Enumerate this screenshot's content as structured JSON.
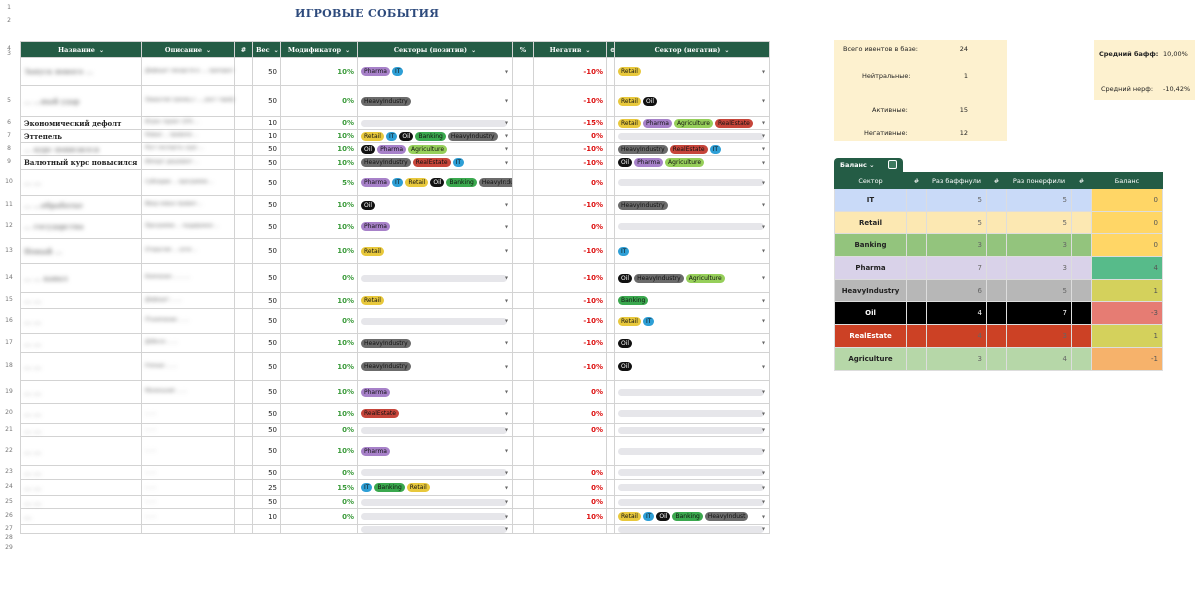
{
  "title": "ИГРОВЫЕ СОБЫТИЯ",
  "headers": {
    "name": "Название",
    "description": "Описание",
    "hash": "#",
    "weight": "Вес",
    "modifier": "Модификатор",
    "sectors_pos": "Секторы (позитив)",
    "percent": "%",
    "negative": "Негатив",
    "link": "⊖",
    "sectors_neg": "Сектор (негатив)"
  },
  "row_numbers": [
    "1",
    "2",
    "3",
    "4",
    "5",
    "6",
    "7",
    "8",
    "9",
    "10",
    "11",
    "12",
    "13",
    "14",
    "15",
    "16",
    "17",
    "18",
    "19",
    "20",
    "21",
    "22",
    "23",
    "24",
    "25",
    "26",
    "27",
    "28",
    "29"
  ],
  "sector_colors": {
    "Pharma": "#a781c9",
    "IT": "#2e9fd6",
    "Retail": "#e8c83c",
    "HeavyIndustry": "#6b6b6b",
    "Banking": "#3aa84e",
    "RealEstate": "#c6453a",
    "Agriculture": "#96cf5a",
    "Oil": "#111111"
  },
  "rows": [
    {
      "name": "Запуск нового ...",
      "desc": "Дефицит лекарств в ..., препараты по ... ",
      "weight": "50",
      "mod": "10%",
      "pos": [
        "Pharma",
        "IT"
      ],
      "neg": "-10%",
      "negs": [
        "Retail"
      ]
    },
    {
      "name": "... ...ный удар",
      "desc": "Закрытие границ с ..., рост тарифов ...",
      "weight": "50",
      "mod": "0%",
      "pos": [
        "HeavyIndustry"
      ],
      "neg": "-10%",
      "negs": [
        "Retail",
        "Oil"
      ]
    },
    {
      "name": "Экономический дефолт",
      "desc": "Игрок теряет 10% ...",
      "weight": "10",
      "mod": "0%",
      "pos": [],
      "neg": "-15%",
      "negs": [
        "Retail",
        "Pharma",
        "Agriculture",
        "RealEstate"
      ]
    },
    {
      "name": "Эттепель",
      "desc": "Новые ... правила ...",
      "weight": "10",
      "mod": "10%",
      "pos": [
        "Retail",
        "IT",
        "Oil",
        "Banking",
        "HeavyIndustry"
      ],
      "neg": "0%",
      "negs": []
    },
    {
      "name": "... курс понизился",
      "desc": "Рост экспорта, курс ...",
      "weight": "50",
      "mod": "10%",
      "pos": [
        "Oil",
        "Pharma",
        "Agriculture"
      ],
      "neg": "-10%",
      "negs": [
        "HeavyIndustry",
        "RealEstate",
        "IT"
      ]
    },
    {
      "name": "Валютный курс повысился",
      "desc": "Импорт дешевеет ...",
      "weight": "50",
      "mod": "10%",
      "pos": [
        "HeavyIndustry",
        "RealEstate",
        "IT"
      ],
      "neg": "-10%",
      "negs": [
        "Oil",
        "Pharma",
        "Agriculture"
      ]
    },
    {
      "name": "... ...",
      "desc": "Субсидии ... программа ...",
      "weight": "50",
      "mod": "5%",
      "pos": [
        "Pharma",
        "IT",
        "Retail",
        "Oil",
        "Banking",
        "HeavyIndustry"
      ],
      "neg": "0%",
      "negs": []
    },
    {
      "name": "... ...обработке",
      "desc": "Ввод новых правил ...",
      "weight": "50",
      "mod": "10%",
      "pos": [
        "Oil"
      ],
      "neg": "-10%",
      "negs": [
        "HeavyIndustry"
      ]
    },
    {
      "name": "... государства",
      "desc": "Программа ... поддержки ...",
      "weight": "50",
      "mod": "10%",
      "pos": [
        "Pharma"
      ],
      "neg": "0%",
      "negs": []
    },
    {
      "name": "Новый ...",
      "desc": "Открытие ... сети ...",
      "weight": "50",
      "mod": "10%",
      "pos": [
        "Retail"
      ],
      "neg": "-10%",
      "negs": [
        "IT"
      ]
    },
    {
      "name": "... ... канал",
      "desc": "Компания ... ... ...",
      "weight": "50",
      "mod": "0%",
      "pos": [],
      "neg": "-10%",
      "negs": [
        "Oil",
        "HeavyIndustry",
        "Agriculture"
      ]
    },
    {
      "name": "... ...",
      "desc": "Дефицит ... ...",
      "weight": "50",
      "mod": "10%",
      "pos": [
        "Retail"
      ],
      "neg": "-10%",
      "negs": [
        "Banking"
      ]
    },
    {
      "name": "... ...",
      "desc": "IT-компании ... ...",
      "weight": "50",
      "mod": "0%",
      "pos": [],
      "neg": "-10%",
      "negs": [
        "Retail",
        "IT"
      ]
    },
    {
      "name": "... ...",
      "desc": "Добыча ... ...",
      "weight": "50",
      "mod": "10%",
      "pos": [
        "HeavyIndustry"
      ],
      "neg": "-10%",
      "negs": [
        "Oil"
      ]
    },
    {
      "name": "... ...",
      "desc": "Ученые ... ...",
      "weight": "50",
      "mod": "10%",
      "pos": [
        "HeavyIndustry"
      ],
      "neg": "-10%",
      "negs": [
        "Oil"
      ]
    },
    {
      "name": "... ...",
      "desc": "Маленький ... ...",
      "weight": "50",
      "mod": "10%",
      "pos": [
        "Pharma"
      ],
      "neg": "0%",
      "negs": []
    },
    {
      "name": "... ...",
      "desc": "... ...",
      "weight": "50",
      "mod": "10%",
      "pos": [
        "RealEstate"
      ],
      "neg": "0%",
      "negs": []
    },
    {
      "name": "... ...",
      "desc": "... ...",
      "weight": "50",
      "mod": "0%",
      "pos": [],
      "neg": "0%",
      "negs": []
    },
    {
      "name": "... ...",
      "desc": "... ...",
      "weight": "50",
      "mod": "10%",
      "pos": [
        "Pharma"
      ],
      "neg": "",
      "negs": []
    },
    {
      "name": "... ...",
      "desc": "... ...",
      "weight": "50",
      "mod": "0%",
      "pos": [],
      "neg": "0%",
      "negs": []
    },
    {
      "name": "... ...",
      "desc": "... ...",
      "weight": "25",
      "mod": "15%",
      "pos": [
        "IT",
        "Banking",
        "Retail"
      ],
      "neg": "0%",
      "negs": []
    },
    {
      "name": "... ...",
      "desc": "... ...",
      "weight": "50",
      "mod": "0%",
      "pos": [],
      "neg": "0%",
      "negs": []
    },
    {
      "name": "...",
      "desc": "... ...",
      "weight": "10",
      "mod": "0%",
      "pos": [],
      "neg": "10%",
      "negs": [
        "Retail",
        "IT",
        "Oil",
        "Banking",
        "HeavyIndust"
      ]
    },
    {
      "name": "",
      "desc": "",
      "weight": "",
      "mod": "",
      "pos": [],
      "neg": "",
      "negs": []
    }
  ],
  "stats": {
    "total_label": "Всего ивентов в базе:",
    "total": "24",
    "neutral_label": "Нейтральные:",
    "neutral": "1",
    "active_label": "Активные:",
    "active": "15",
    "negative_label": "Негативные:",
    "negative": "12"
  },
  "avg": {
    "buff_label": "Средний бафф:",
    "buff": "10,00%",
    "nerf_label": "Средний нерф:",
    "nerf": "-10,42%"
  },
  "balance": {
    "tab": "Баланс",
    "headers": [
      "Сектор",
      "#",
      "Раз баффнули",
      "#",
      "Раз понерфили",
      "#",
      "Баланс"
    ],
    "rows": [
      {
        "sector": "IT",
        "buffed": "5",
        "nerfed": "5",
        "bal": "0",
        "color": "#c9daf8",
        "balcolor": "#ffd666"
      },
      {
        "sector": "Retail",
        "buffed": "5",
        "nerfed": "5",
        "bal": "0",
        "color": "#fce8b2",
        "balcolor": "#ffd666"
      },
      {
        "sector": "Banking",
        "buffed": "3",
        "nerfed": "3",
        "bal": "0",
        "color": "#93c47d",
        "balcolor": "#ffd666"
      },
      {
        "sector": "Pharma",
        "buffed": "7",
        "nerfed": "3",
        "bal": "4",
        "color": "#d9d2e9",
        "balcolor": "#57bb8a"
      },
      {
        "sector": "HeavyIndustry",
        "buffed": "6",
        "nerfed": "5",
        "bal": "1",
        "color": "#b7b7b7",
        "balcolor": "#d4d15c"
      },
      {
        "sector": "Oil",
        "buffed": "4",
        "nerfed": "7",
        "bal": "-3",
        "color": "#000000",
        "balcolor": "#e67c73"
      },
      {
        "sector": "RealEstate",
        "buffed": "4",
        "nerfed": "3",
        "bal": "1",
        "color": "#cc4125",
        "balcolor": "#d4d15c"
      },
      {
        "sector": "Agriculture",
        "buffed": "3",
        "nerfed": "4",
        "bal": "-1",
        "color": "#b6d7a8",
        "balcolor": "#f6b26b"
      }
    ]
  }
}
